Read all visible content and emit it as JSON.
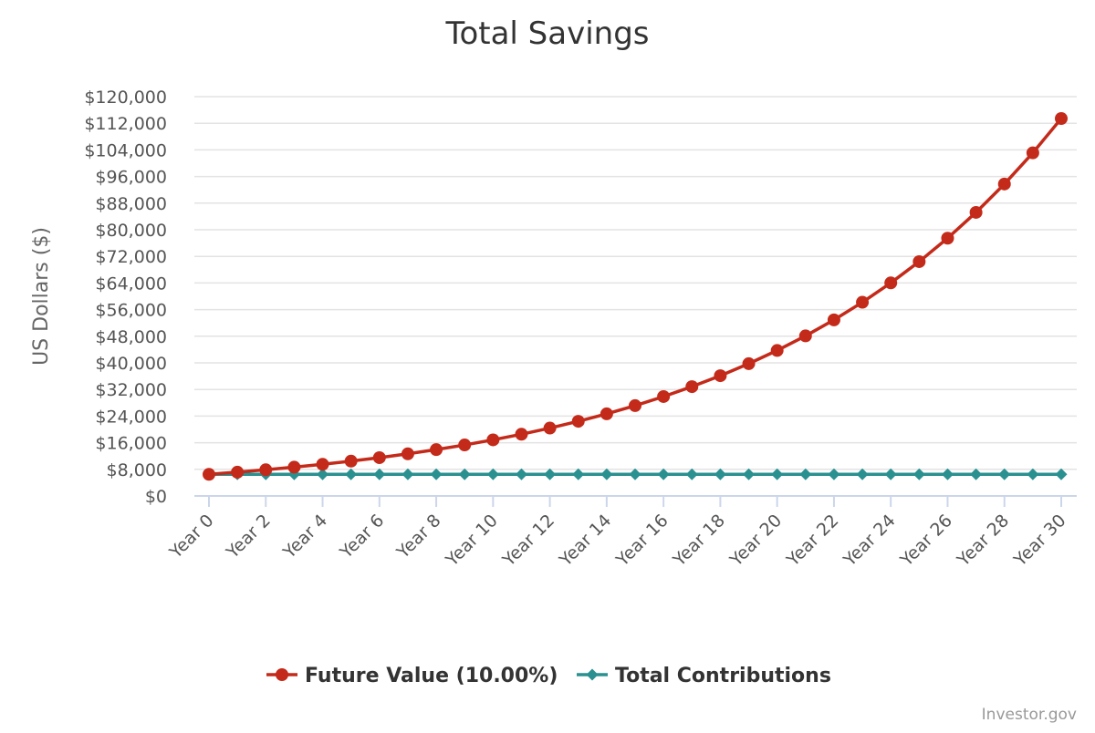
{
  "chart_data": {
    "type": "line",
    "title": "Total Savings",
    "xlabel": "",
    "ylabel": "US Dollars ($)",
    "ylim": [
      0,
      120000
    ],
    "y_ticks": [
      "$0",
      "$8,000",
      "$16,000",
      "$24,000",
      "$32,000",
      "$40,000",
      "$48,000",
      "$56,000",
      "$64,000",
      "$72,000",
      "$80,000",
      "$88,000",
      "$96,000",
      "$104,000",
      "$112,000",
      "$120,000"
    ],
    "x_tick_labels": [
      "Year 0",
      "Year 2",
      "Year 4",
      "Year 6",
      "Year 8",
      "Year 10",
      "Year 12",
      "Year 14",
      "Year 16",
      "Year 18",
      "Year 20",
      "Year 22",
      "Year 24",
      "Year 26",
      "Year 28",
      "Year 30"
    ],
    "x": [
      "Year 0",
      "Year 1",
      "Year 2",
      "Year 3",
      "Year 4",
      "Year 5",
      "Year 6",
      "Year 7",
      "Year 8",
      "Year 9",
      "Year 10",
      "Year 11",
      "Year 12",
      "Year 13",
      "Year 14",
      "Year 15",
      "Year 16",
      "Year 17",
      "Year 18",
      "Year 19",
      "Year 20",
      "Year 21",
      "Year 22",
      "Year 23",
      "Year 24",
      "Year 25",
      "Year 26",
      "Year 27",
      "Year 28",
      "Year 29",
      "Year 30"
    ],
    "series": [
      {
        "name": "Future Value (10.00%)",
        "color": "#c42a1a",
        "marker": "circle",
        "values": [
          6500,
          7150,
          7865,
          8652,
          9517,
          10468,
          11515,
          12667,
          13933,
          15327,
          16859,
          18545,
          20400,
          22440,
          24684,
          27152,
          29868,
          32854,
          36140,
          39754,
          43729,
          48102,
          52912,
          58204,
          64024,
          70426,
          77469,
          85216,
          93737,
          103111,
          113422
        ]
      },
      {
        "name": "Total Contributions",
        "color": "#2a9090",
        "marker": "diamond",
        "values": [
          6500,
          6500,
          6500,
          6500,
          6500,
          6500,
          6500,
          6500,
          6500,
          6500,
          6500,
          6500,
          6500,
          6500,
          6500,
          6500,
          6500,
          6500,
          6500,
          6500,
          6500,
          6500,
          6500,
          6500,
          6500,
          6500,
          6500,
          6500,
          6500,
          6500,
          6500
        ]
      }
    ],
    "grid": true,
    "legend_position": "bottom-center",
    "credit": "Investor.gov"
  }
}
